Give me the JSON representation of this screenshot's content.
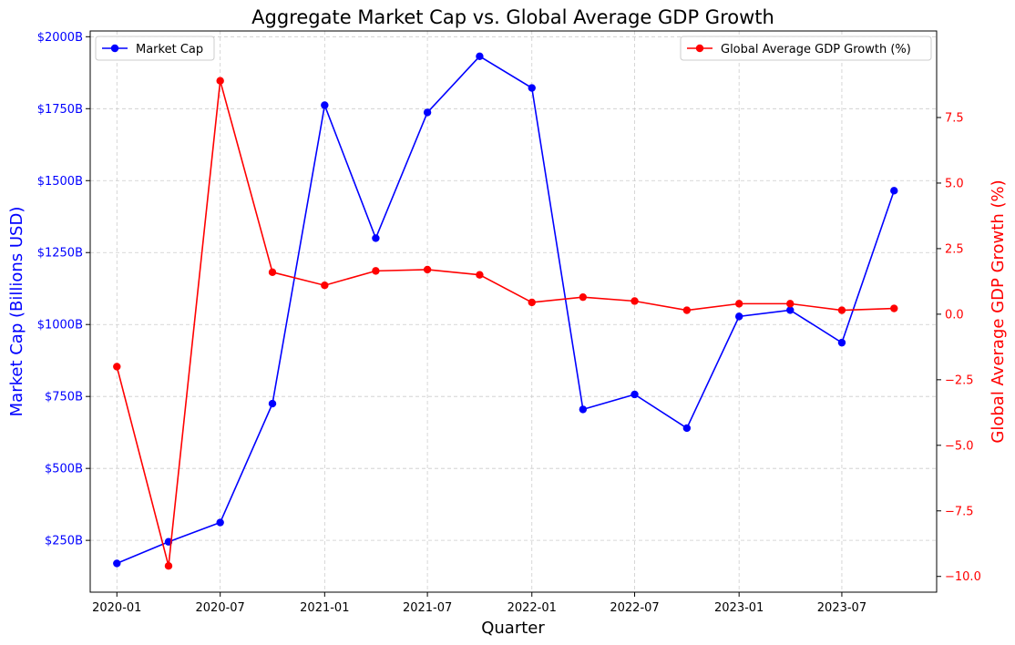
{
  "chart_data": {
    "type": "line",
    "title": "Aggregate Market Cap vs. Global Average GDP Growth",
    "xlabel": "Quarter",
    "ylabel_left": "Market Cap (Billions USD)",
    "ylabel_right": "Global Average GDP Growth (%)",
    "grid": true,
    "x": [
      "2020-01-01",
      "2020-04-01",
      "2020-07-01",
      "2020-10-01",
      "2021-01-01",
      "2021-04-01",
      "2021-07-01",
      "2021-10-01",
      "2022-01-01",
      "2022-04-01",
      "2022-07-01",
      "2022-10-01",
      "2023-01-01",
      "2023-04-01",
      "2023-07-01",
      "2023-10-01"
    ],
    "x_ticks": [
      "2020-01",
      "2020-07",
      "2021-01",
      "2021-07",
      "2022-01",
      "2022-07",
      "2023-01",
      "2023-07"
    ],
    "x_tick_dates": [
      "2020-01-01",
      "2020-07-01",
      "2021-01-01",
      "2021-07-01",
      "2022-01-01",
      "2022-07-01",
      "2023-01-01",
      "2023-07-01"
    ],
    "x_range": [
      "2019-11-15",
      "2023-12-15"
    ],
    "y_left": {
      "range": [
        70,
        2020
      ],
      "ticks": [
        250,
        500,
        750,
        1000,
        1250,
        1500,
        1750,
        2000
      ],
      "tick_labels": [
        "$250B",
        "$500B",
        "$750B",
        "$1000B",
        "$1250B",
        "$1500B",
        "$1750B",
        "$2000B"
      ],
      "color": "#0000ff"
    },
    "y_right": {
      "range": [
        -10.6,
        10.8
      ],
      "ticks": [
        -10.0,
        -7.5,
        -5.0,
        -2.5,
        0.0,
        2.5,
        5.0,
        7.5
      ],
      "tick_labels": [
        "−10.0",
        "−7.5",
        "−5.0",
        "−2.5",
        "0.0",
        "2.5",
        "5.0",
        "7.5"
      ],
      "color": "#ff0000"
    },
    "series": [
      {
        "name": "Market Cap",
        "axis": "left",
        "color": "#0000ff",
        "legend_position": "top-left",
        "values": [
          170,
          245,
          312,
          725,
          1762,
          1300,
          1737,
          1932,
          1822,
          705,
          757,
          640,
          1028,
          1050,
          937,
          1465
        ]
      },
      {
        "name": "Global Average GDP Growth (%)",
        "axis": "right",
        "color": "#ff0000",
        "legend_position": "top-right",
        "values": [
          -2.0,
          -9.6,
          8.9,
          1.6,
          1.1,
          1.65,
          1.7,
          1.5,
          0.45,
          0.65,
          0.5,
          0.15,
          0.4,
          0.4,
          0.15,
          0.22
        ]
      }
    ]
  }
}
